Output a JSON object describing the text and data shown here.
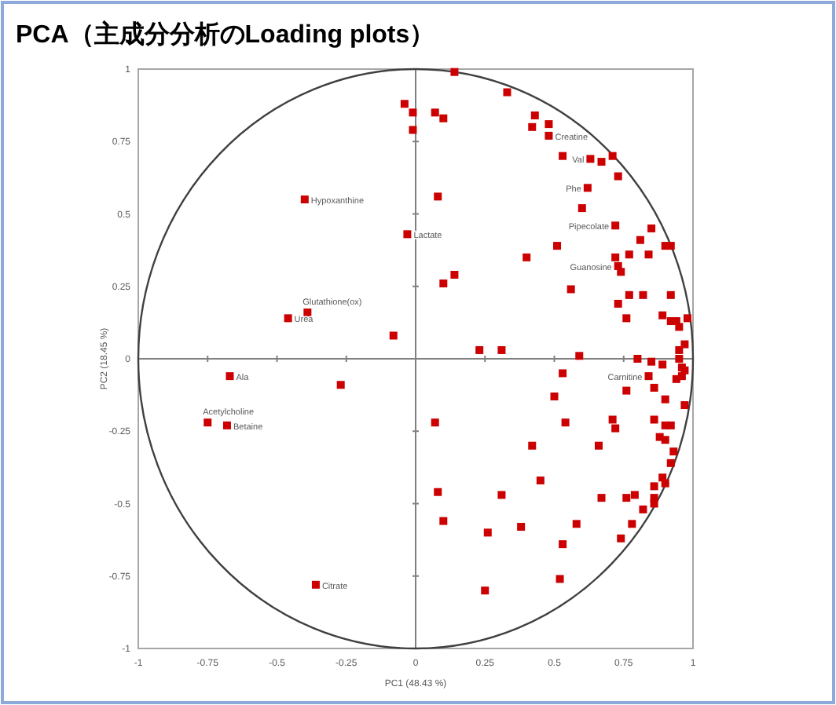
{
  "chart_data": {
    "type": "scatter",
    "title": "PCA（主成分分析のLoading plots）",
    "xlabel": "PC1 (48.43 %)",
    "ylabel": "PC2 (18.45 %)",
    "xlim": [
      -1,
      1
    ],
    "ylim": [
      -1,
      1
    ],
    "xticks": [
      -1,
      -0.75,
      -0.5,
      -0.25,
      0,
      0.25,
      0.5,
      0.75,
      1
    ],
    "yticks": [
      -1,
      -0.75,
      -0.5,
      -0.25,
      0,
      0.25,
      0.5,
      0.75,
      1
    ],
    "marker": "square",
    "series": [
      {
        "color": "#cc0000",
        "x": [
          -0.04,
          -0.01,
          -0.01,
          -0.4,
          -0.03,
          -0.39,
          -0.46,
          -0.08,
          0.14,
          0.33,
          0.07,
          0.1,
          0.43,
          0.42,
          0.48,
          0.48,
          0.53,
          0.63,
          0.67,
          0.71,
          0.73,
          0.08,
          0.62,
          0.6,
          0.72,
          0.85,
          0.81,
          0.9,
          0.92,
          0.51,
          0.4,
          0.72,
          0.77,
          0.84,
          0.73,
          0.74,
          0.14,
          0.1,
          0.56,
          0.77,
          0.82,
          0.92,
          0.73,
          0.76,
          0.89,
          0.92,
          0.94,
          0.98,
          0.95,
          0.23,
          0.31,
          0.59,
          -0.67,
          -0.27,
          -0.75,
          -0.68,
          -0.36,
          0.53,
          0.8,
          0.85,
          0.89,
          0.95,
          0.96,
          0.96,
          0.94,
          0.84,
          0.86,
          0.76,
          0.5,
          0.97,
          0.07,
          0.54,
          0.71,
          0.72,
          0.86,
          0.9,
          0.92,
          0.88,
          0.9,
          0.42,
          0.66,
          0.93,
          0.92,
          0.89,
          0.9,
          0.86,
          0.45,
          0.79,
          0.76,
          0.67,
          0.86,
          0.86,
          0.82,
          0.08,
          0.31,
          0.1,
          0.26,
          0.38,
          0.58,
          0.78,
          0.74,
          0.53,
          0.52,
          0.25,
          0.95,
          0.97,
          0.97,
          0.9
        ],
        "values": [
          0.88,
          0.85,
          0.79,
          0.55,
          0.43,
          0.16,
          0.14,
          0.08,
          0.99,
          0.92,
          0.85,
          0.83,
          0.84,
          0.8,
          0.81,
          0.77,
          0.7,
          0.69,
          0.68,
          0.7,
          0.63,
          0.56,
          0.59,
          0.52,
          0.46,
          0.45,
          0.41,
          0.39,
          0.39,
          0.39,
          0.35,
          0.35,
          0.36,
          0.36,
          0.32,
          0.3,
          0.29,
          0.26,
          0.24,
          0.22,
          0.22,
          0.22,
          0.19,
          0.14,
          0.15,
          0.13,
          0.13,
          0.14,
          0.11,
          0.03,
          0.03,
          0.01,
          -0.06,
          -0.09,
          -0.22,
          -0.23,
          -0.78,
          -0.05,
          0.0,
          -0.01,
          -0.02,
          0.0,
          -0.03,
          -0.06,
          -0.07,
          -0.06,
          -0.1,
          -0.11,
          -0.13,
          -0.16,
          -0.22,
          -0.22,
          -0.21,
          -0.24,
          -0.21,
          -0.23,
          -0.23,
          -0.27,
          -0.28,
          -0.3,
          -0.3,
          -0.32,
          -0.36,
          -0.41,
          -0.43,
          -0.44,
          -0.42,
          -0.47,
          -0.48,
          -0.48,
          -0.48,
          -0.5,
          -0.52,
          -0.46,
          -0.47,
          -0.56,
          -0.6,
          -0.58,
          -0.57,
          -0.57,
          -0.62,
          -0.64,
          -0.76,
          -0.8,
          0.03,
          0.05,
          -0.04,
          -0.14
        ]
      }
    ],
    "annotations": [
      {
        "text": "Hypoxanthine",
        "x": -0.4,
        "y": 0.55
      },
      {
        "text": "Lactate",
        "x": -0.03,
        "y": 0.43
      },
      {
        "text": "Glutathione(ox)",
        "x": -0.39,
        "y": 0.16
      },
      {
        "text": "Urea",
        "x": -0.46,
        "y": 0.14
      },
      {
        "text": "Ala",
        "x": -0.67,
        "y": -0.06
      },
      {
        "text": "Acetylcholine",
        "x": -0.75,
        "y": -0.22
      },
      {
        "text": "Betaine",
        "x": -0.68,
        "y": -0.23
      },
      {
        "text": "Citrate",
        "x": -0.36,
        "y": -0.78
      },
      {
        "text": "Creatine",
        "x": 0.48,
        "y": 0.77
      },
      {
        "text": "Val",
        "x": 0.63,
        "y": 0.69
      },
      {
        "text": "Phe",
        "x": 0.62,
        "y": 0.59
      },
      {
        "text": "Pipecolate",
        "x": 0.72,
        "y": 0.46
      },
      {
        "text": "Guanosine",
        "x": 0.73,
        "y": 0.32
      },
      {
        "text": "Carnitine",
        "x": 0.84,
        "y": -0.06
      }
    ]
  }
}
